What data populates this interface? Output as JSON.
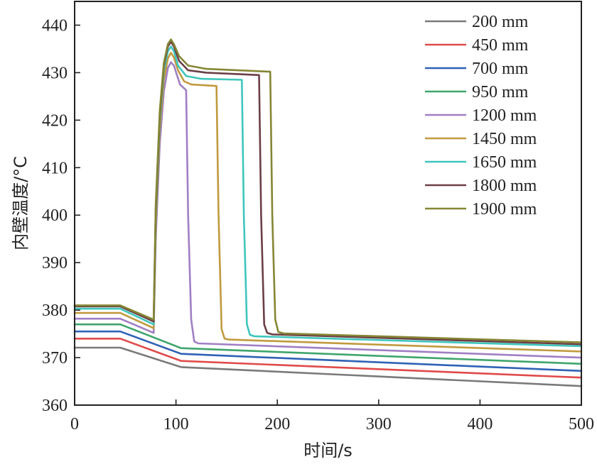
{
  "chart_data": {
    "type": "line",
    "title": "",
    "xlabel": "时间/s",
    "ylabel": "内壁温度/°C",
    "xlim": [
      0,
      500
    ],
    "ylim": [
      360,
      445
    ],
    "xticks": [
      0,
      100,
      200,
      300,
      400,
      500
    ],
    "yticks": [
      360,
      370,
      380,
      390,
      400,
      410,
      420,
      430,
      440
    ],
    "grid": false,
    "legend_position": "top-right",
    "series": [
      {
        "name": "200 mm",
        "color": "#7a7a7a",
        "points": [
          [
            0,
            372.1
          ],
          [
            45,
            372.1
          ],
          [
            105,
            368.0
          ],
          [
            500,
            364.0
          ]
        ]
      },
      {
        "name": "450 mm",
        "color": "#e04a4a",
        "points": [
          [
            0,
            374.0
          ],
          [
            45,
            374.0
          ],
          [
            105,
            369.3
          ],
          [
            500,
            365.8
          ]
        ]
      },
      {
        "name": "700 mm",
        "color": "#2f62b5",
        "points": [
          [
            0,
            375.5
          ],
          [
            45,
            375.5
          ],
          [
            105,
            370.8
          ],
          [
            500,
            367.2
          ]
        ]
      },
      {
        "name": "950 mm",
        "color": "#3fa56c",
        "points": [
          [
            0,
            377.0
          ],
          [
            45,
            377.0
          ],
          [
            105,
            372.0
          ],
          [
            500,
            368.7
          ]
        ]
      },
      {
        "name": "1200 mm",
        "color": "#a07fc4",
        "points": [
          [
            0,
            378.2
          ],
          [
            45,
            378.2
          ],
          [
            78,
            375.2
          ],
          [
            80,
            395
          ],
          [
            84,
            415
          ],
          [
            88,
            426
          ],
          [
            92,
            431
          ],
          [
            95,
            432.2
          ],
          [
            98,
            431.5
          ],
          [
            101,
            429.5
          ],
          [
            104,
            427.5
          ],
          [
            110,
            426.3
          ],
          [
            112,
            400
          ],
          [
            115,
            378
          ],
          [
            118,
            373.4
          ],
          [
            122,
            373.0
          ],
          [
            500,
            370.0
          ]
        ]
      },
      {
        "name": "1450 mm",
        "color": "#c19a3e",
        "points": [
          [
            0,
            379.4
          ],
          [
            45,
            379.4
          ],
          [
            78,
            376.2
          ],
          [
            80,
            398
          ],
          [
            84,
            418
          ],
          [
            88,
            428.5
          ],
          [
            92,
            433
          ],
          [
            95,
            434.2
          ],
          [
            98,
            433.2
          ],
          [
            102,
            430.5
          ],
          [
            108,
            428.2
          ],
          [
            115,
            427.5
          ],
          [
            140,
            427.2
          ],
          [
            142,
            400
          ],
          [
            145,
            376
          ],
          [
            148,
            374.0
          ],
          [
            152,
            373.8
          ],
          [
            500,
            371.3
          ]
        ]
      },
      {
        "name": "1650 mm",
        "color": "#3ec6bc",
        "points": [
          [
            0,
            380.3
          ],
          [
            45,
            380.3
          ],
          [
            78,
            377.0
          ],
          [
            80,
            400
          ],
          [
            84,
            420
          ],
          [
            88,
            430.5
          ],
          [
            92,
            434.5
          ],
          [
            95,
            435.5
          ],
          [
            98,
            434.5
          ],
          [
            102,
            431.5
          ],
          [
            110,
            429.3
          ],
          [
            125,
            428.7
          ],
          [
            165,
            428.5
          ],
          [
            167,
            400
          ],
          [
            170,
            377
          ],
          [
            173,
            374.8
          ],
          [
            177,
            374.5
          ],
          [
            500,
            372.4
          ]
        ]
      },
      {
        "name": "1800 mm",
        "color": "#6b3f46",
        "points": [
          [
            0,
            380.8
          ],
          [
            45,
            380.8
          ],
          [
            78,
            377.6
          ],
          [
            80,
            401
          ],
          [
            84,
            421
          ],
          [
            88,
            431.5
          ],
          [
            92,
            435.5
          ],
          [
            95,
            436.5
          ],
          [
            98,
            435.5
          ],
          [
            103,
            432.5
          ],
          [
            112,
            430.5
          ],
          [
            130,
            430.0
          ],
          [
            182,
            429.5
          ],
          [
            184,
            400
          ],
          [
            187,
            377
          ],
          [
            190,
            375.2
          ],
          [
            195,
            374.9
          ],
          [
            500,
            372.8
          ]
        ]
      },
      {
        "name": "1900 mm",
        "color": "#858634",
        "points": [
          [
            0,
            381.0
          ],
          [
            45,
            381.0
          ],
          [
            78,
            378.0
          ],
          [
            80,
            402
          ],
          [
            84,
            422
          ],
          [
            88,
            432
          ],
          [
            92,
            436
          ],
          [
            95,
            437.0
          ],
          [
            98,
            436.0
          ],
          [
            103,
            433.5
          ],
          [
            112,
            431.5
          ],
          [
            130,
            430.8
          ],
          [
            193,
            430.2
          ],
          [
            195,
            400
          ],
          [
            198,
            378
          ],
          [
            201,
            375.4
          ],
          [
            206,
            375.1
          ],
          [
            500,
            373.2
          ]
        ]
      }
    ]
  }
}
